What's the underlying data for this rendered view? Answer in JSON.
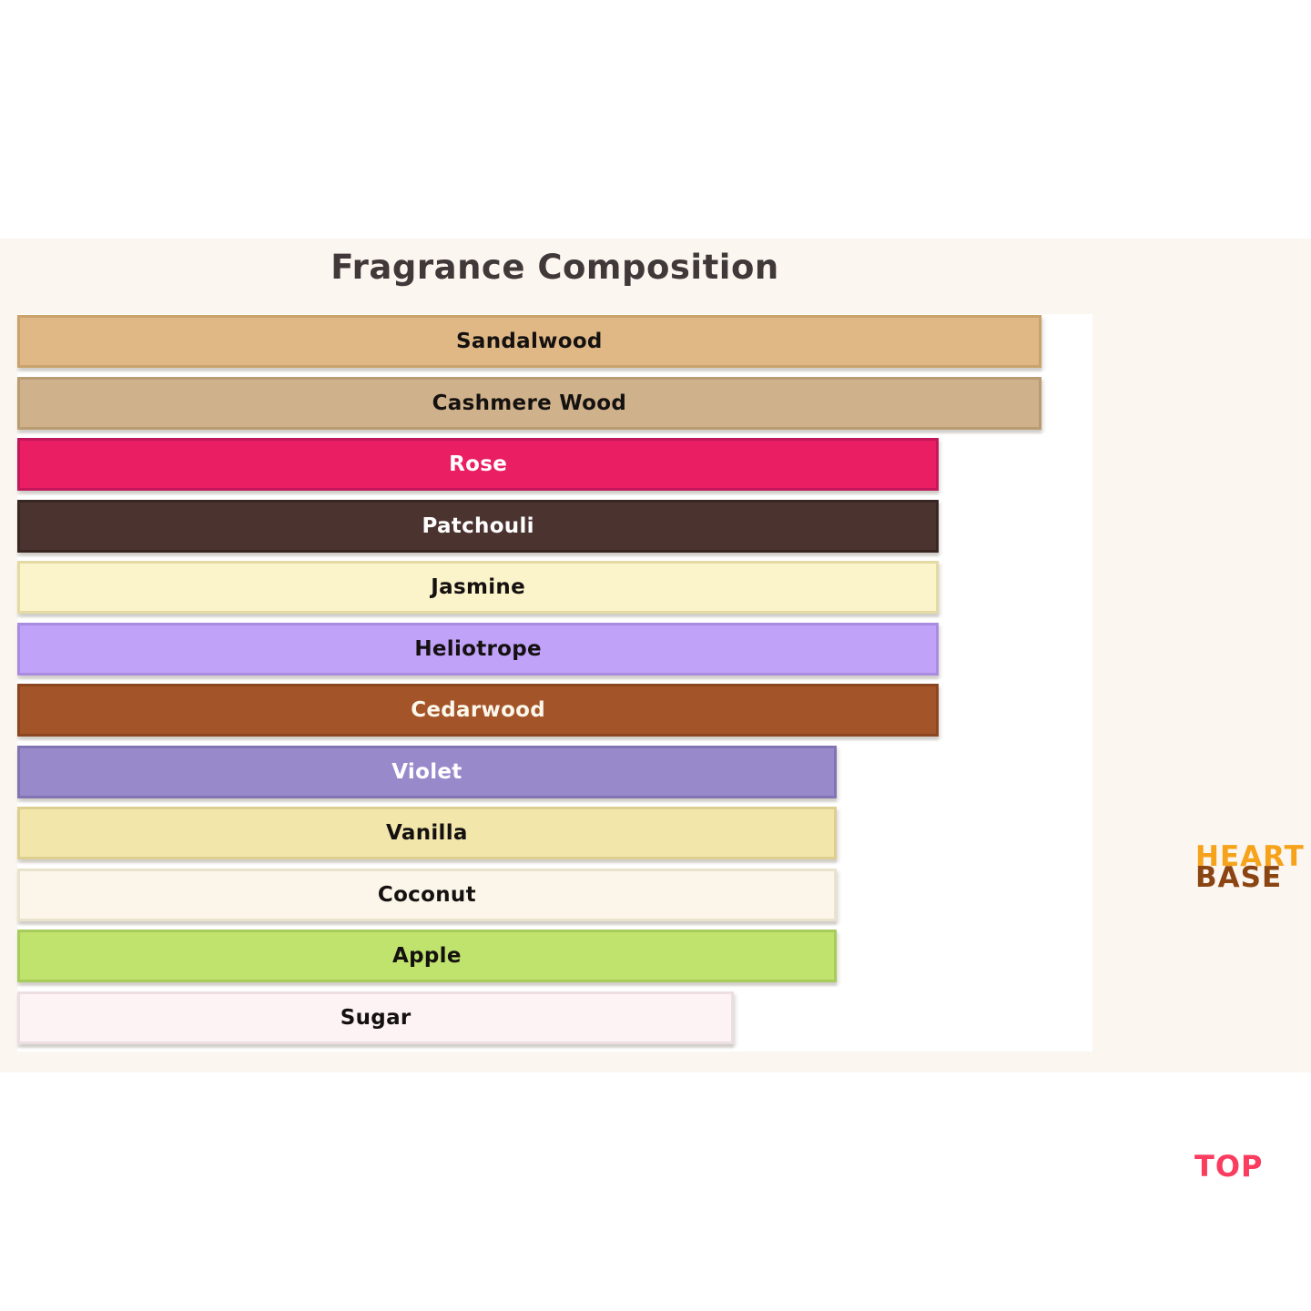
{
  "chart": {
    "title": "Fragrance Composition"
  },
  "chart_data": {
    "type": "bar",
    "orientation": "horizontal",
    "title": "Fragrance Composition",
    "xlabel": "",
    "ylabel": "",
    "xlim": [
      0,
      10.5
    ],
    "grid": false,
    "legend_position": "right-outside",
    "categories": [
      "Sandalwood",
      "Cashmere Wood",
      "Rose",
      "Patchouli",
      "Jasmine",
      "Heliotrope",
      "Cedarwood",
      "Violet",
      "Vanilla",
      "Coconut",
      "Apple",
      "Sugar"
    ],
    "values": [
      10,
      10,
      9,
      9,
      9,
      9,
      9,
      8,
      8,
      8,
      8,
      7
    ],
    "notes": [
      {
        "label": "Sandalwood",
        "value": 10,
        "color": "#DFB886",
        "border_color": "#C9A26C",
        "text_color": "#141110"
      },
      {
        "label": "Cashmere Wood",
        "value": 10,
        "color": "#CFB28B",
        "border_color": "#B99C72",
        "text_color": "#141110"
      },
      {
        "label": "Rose",
        "value": 9,
        "color": "#E91E63",
        "border_color": "#C2185B",
        "text_color": "#FFFFFF"
      },
      {
        "label": "Patchouli",
        "value": 9,
        "color": "#4B3330",
        "border_color": "#382623",
        "text_color": "#FFFFFF"
      },
      {
        "label": "Jasmine",
        "value": 9,
        "color": "#FBF3CA",
        "border_color": "#E4DAA4",
        "text_color": "#141110"
      },
      {
        "label": "Heliotrope",
        "value": 9,
        "color": "#C1A2F9",
        "border_color": "#A98BDF",
        "text_color": "#141110"
      },
      {
        "label": "Cedarwood",
        "value": 9,
        "color": "#A35429",
        "border_color": "#8B4521",
        "text_color": "#FCF7EB"
      },
      {
        "label": "Violet",
        "value": 8,
        "color": "#9889CB",
        "border_color": "#8274B3",
        "text_color": "#FFFFFF"
      },
      {
        "label": "Vanilla",
        "value": 8,
        "color": "#F2E6AB",
        "border_color": "#DCCF90",
        "text_color": "#141110"
      },
      {
        "label": "Coconut",
        "value": 8,
        "color": "#FBF6E9",
        "border_color": "#E9E2CC",
        "text_color": "#141110"
      },
      {
        "label": "Apple",
        "value": 8,
        "color": "#C0E36E",
        "border_color": "#A8CC5C",
        "text_color": "#141110"
      },
      {
        "label": "Sugar",
        "value": 7,
        "color": "#FDF2F4",
        "border_color": "#ECDEE3",
        "text_color": "#141110"
      }
    ],
    "annotations": [
      {
        "text": "HEART",
        "color": "#F7A21B"
      },
      {
        "text": "BASE",
        "color": "#8B4513"
      },
      {
        "text": "TOP",
        "color": "#FA3C5F"
      }
    ]
  },
  "colors": {
    "section_background": "#FBF6EF",
    "plot_background": "#FFFFFF",
    "title": "#413839"
  }
}
